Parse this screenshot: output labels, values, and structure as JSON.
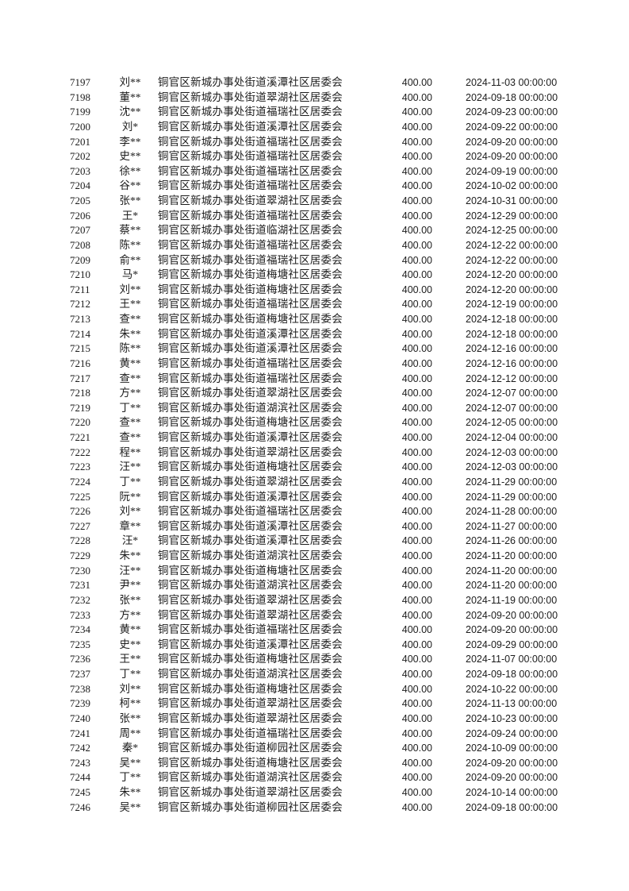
{
  "page": {
    "background_color": "#ffffff",
    "text_color": "#1c1c1c",
    "amount_uniform_value": "400.00"
  },
  "table": {
    "rows": [
      {
        "id": "7197",
        "name": "刘**",
        "org": "铜官区新城办事处街道溪潭社区居委会",
        "amount": "400.00",
        "datetime": "2024-11-03 00:00:00"
      },
      {
        "id": "7198",
        "name": "董**",
        "org": "铜官区新城办事处街道翠湖社区居委会",
        "amount": "400.00",
        "datetime": "2024-09-18 00:00:00"
      },
      {
        "id": "7199",
        "name": "沈**",
        "org": "铜官区新城办事处街道福瑞社区居委会",
        "amount": "400.00",
        "datetime": "2024-09-23 00:00:00"
      },
      {
        "id": "7200",
        "name": "刘*",
        "org": "铜官区新城办事处街道溪潭社区居委会",
        "amount": "400.00",
        "datetime": "2024-09-22 00:00:00"
      },
      {
        "id": "7201",
        "name": "李**",
        "org": "铜官区新城办事处街道福瑞社区居委会",
        "amount": "400.00",
        "datetime": "2024-09-20 00:00:00"
      },
      {
        "id": "7202",
        "name": "史**",
        "org": "铜官区新城办事处街道福瑞社区居委会",
        "amount": "400.00",
        "datetime": "2024-09-20 00:00:00"
      },
      {
        "id": "7203",
        "name": "徐**",
        "org": "铜官区新城办事处街道福瑞社区居委会",
        "amount": "400.00",
        "datetime": "2024-09-19 00:00:00"
      },
      {
        "id": "7204",
        "name": "谷**",
        "org": "铜官区新城办事处街道福瑞社区居委会",
        "amount": "400.00",
        "datetime": "2024-10-02 00:00:00"
      },
      {
        "id": "7205",
        "name": "张**",
        "org": "铜官区新城办事处街道翠湖社区居委会",
        "amount": "400.00",
        "datetime": "2024-10-31 00:00:00"
      },
      {
        "id": "7206",
        "name": "王*",
        "org": "铜官区新城办事处街道福瑞社区居委会",
        "amount": "400.00",
        "datetime": "2024-12-29 00:00:00"
      },
      {
        "id": "7207",
        "name": "蔡**",
        "org": "铜官区新城办事处街道临湖社区居委会",
        "amount": "400.00",
        "datetime": "2024-12-25 00:00:00"
      },
      {
        "id": "7208",
        "name": "陈**",
        "org": "铜官区新城办事处街道福瑞社区居委会",
        "amount": "400.00",
        "datetime": "2024-12-22 00:00:00"
      },
      {
        "id": "7209",
        "name": "俞**",
        "org": "铜官区新城办事处街道福瑞社区居委会",
        "amount": "400.00",
        "datetime": "2024-12-22 00:00:00"
      },
      {
        "id": "7210",
        "name": "马*",
        "org": "铜官区新城办事处街道梅塘社区居委会",
        "amount": "400.00",
        "datetime": "2024-12-20 00:00:00"
      },
      {
        "id": "7211",
        "name": "刘**",
        "org": "铜官区新城办事处街道梅塘社区居委会",
        "amount": "400.00",
        "datetime": "2024-12-20 00:00:00"
      },
      {
        "id": "7212",
        "name": "王**",
        "org": "铜官区新城办事处街道福瑞社区居委会",
        "amount": "400.00",
        "datetime": "2024-12-19 00:00:00"
      },
      {
        "id": "7213",
        "name": "查**",
        "org": "铜官区新城办事处街道梅塘社区居委会",
        "amount": "400.00",
        "datetime": "2024-12-18 00:00:00"
      },
      {
        "id": "7214",
        "name": "朱**",
        "org": "铜官区新城办事处街道溪潭社区居委会",
        "amount": "400.00",
        "datetime": "2024-12-18 00:00:00"
      },
      {
        "id": "7215",
        "name": "陈**",
        "org": "铜官区新城办事处街道溪潭社区居委会",
        "amount": "400.00",
        "datetime": "2024-12-16 00:00:00"
      },
      {
        "id": "7216",
        "name": "黄**",
        "org": "铜官区新城办事处街道福瑞社区居委会",
        "amount": "400.00",
        "datetime": "2024-12-16 00:00:00"
      },
      {
        "id": "7217",
        "name": "查**",
        "org": "铜官区新城办事处街道福瑞社区居委会",
        "amount": "400.00",
        "datetime": "2024-12-12 00:00:00"
      },
      {
        "id": "7218",
        "name": "方**",
        "org": "铜官区新城办事处街道翠湖社区居委会",
        "amount": "400.00",
        "datetime": "2024-12-07 00:00:00"
      },
      {
        "id": "7219",
        "name": "丁**",
        "org": "铜官区新城办事处街道湖滨社区居委会",
        "amount": "400.00",
        "datetime": "2024-12-07 00:00:00"
      },
      {
        "id": "7220",
        "name": "查**",
        "org": "铜官区新城办事处街道梅塘社区居委会",
        "amount": "400.00",
        "datetime": "2024-12-05 00:00:00"
      },
      {
        "id": "7221",
        "name": "查**",
        "org": "铜官区新城办事处街道溪潭社区居委会",
        "amount": "400.00",
        "datetime": "2024-12-04 00:00:00"
      },
      {
        "id": "7222",
        "name": "程**",
        "org": "铜官区新城办事处街道翠湖社区居委会",
        "amount": "400.00",
        "datetime": "2024-12-03 00:00:00"
      },
      {
        "id": "7223",
        "name": "汪**",
        "org": "铜官区新城办事处街道梅塘社区居委会",
        "amount": "400.00",
        "datetime": "2024-12-03 00:00:00"
      },
      {
        "id": "7224",
        "name": "丁**",
        "org": "铜官区新城办事处街道翠湖社区居委会",
        "amount": "400.00",
        "datetime": "2024-11-29 00:00:00"
      },
      {
        "id": "7225",
        "name": "阮**",
        "org": "铜官区新城办事处街道溪潭社区居委会",
        "amount": "400.00",
        "datetime": "2024-11-29 00:00:00"
      },
      {
        "id": "7226",
        "name": "刘**",
        "org": "铜官区新城办事处街道福瑞社区居委会",
        "amount": "400.00",
        "datetime": "2024-11-28 00:00:00"
      },
      {
        "id": "7227",
        "name": "章**",
        "org": "铜官区新城办事处街道溪潭社区居委会",
        "amount": "400.00",
        "datetime": "2024-11-27 00:00:00"
      },
      {
        "id": "7228",
        "name": "汪*",
        "org": "铜官区新城办事处街道溪潭社区居委会",
        "amount": "400.00",
        "datetime": "2024-11-26 00:00:00"
      },
      {
        "id": "7229",
        "name": "朱**",
        "org": "铜官区新城办事处街道湖滨社区居委会",
        "amount": "400.00",
        "datetime": "2024-11-20 00:00:00"
      },
      {
        "id": "7230",
        "name": "汪**",
        "org": "铜官区新城办事处街道梅塘社区居委会",
        "amount": "400.00",
        "datetime": "2024-11-20 00:00:00"
      },
      {
        "id": "7231",
        "name": "尹**",
        "org": "铜官区新城办事处街道湖滨社区居委会",
        "amount": "400.00",
        "datetime": "2024-11-20 00:00:00"
      },
      {
        "id": "7232",
        "name": "张**",
        "org": "铜官区新城办事处街道翠湖社区居委会",
        "amount": "400.00",
        "datetime": "2024-11-19 00:00:00"
      },
      {
        "id": "7233",
        "name": "方**",
        "org": "铜官区新城办事处街道翠湖社区居委会",
        "amount": "400.00",
        "datetime": "2024-09-20 00:00:00"
      },
      {
        "id": "7234",
        "name": "黄**",
        "org": "铜官区新城办事处街道福瑞社区居委会",
        "amount": "400.00",
        "datetime": "2024-09-20 00:00:00"
      },
      {
        "id": "7235",
        "name": "史**",
        "org": "铜官区新城办事处街道溪潭社区居委会",
        "amount": "400.00",
        "datetime": "2024-09-29 00:00:00"
      },
      {
        "id": "7236",
        "name": "王**",
        "org": "铜官区新城办事处街道梅塘社区居委会",
        "amount": "400.00",
        "datetime": "2024-11-07 00:00:00"
      },
      {
        "id": "7237",
        "name": "丁**",
        "org": "铜官区新城办事处街道湖滨社区居委会",
        "amount": "400.00",
        "datetime": "2024-09-18 00:00:00"
      },
      {
        "id": "7238",
        "name": "刘**",
        "org": "铜官区新城办事处街道梅塘社区居委会",
        "amount": "400.00",
        "datetime": "2024-10-22 00:00:00"
      },
      {
        "id": "7239",
        "name": "柯**",
        "org": "铜官区新城办事处街道翠湖社区居委会",
        "amount": "400.00",
        "datetime": "2024-11-13 00:00:00"
      },
      {
        "id": "7240",
        "name": "张**",
        "org": "铜官区新城办事处街道翠湖社区居委会",
        "amount": "400.00",
        "datetime": "2024-10-23 00:00:00"
      },
      {
        "id": "7241",
        "name": "周**",
        "org": "铜官区新城办事处街道福瑞社区居委会",
        "amount": "400.00",
        "datetime": "2024-09-24 00:00:00"
      },
      {
        "id": "7242",
        "name": "秦*",
        "org": "铜官区新城办事处街道柳园社区居委会",
        "amount": "400.00",
        "datetime": "2024-10-09 00:00:00"
      },
      {
        "id": "7243",
        "name": "吴**",
        "org": "铜官区新城办事处街道梅塘社区居委会",
        "amount": "400.00",
        "datetime": "2024-09-20 00:00:00"
      },
      {
        "id": "7244",
        "name": "丁**",
        "org": "铜官区新城办事处街道湖滨社区居委会",
        "amount": "400.00",
        "datetime": "2024-09-20 00:00:00"
      },
      {
        "id": "7245",
        "name": "朱**",
        "org": "铜官区新城办事处街道翠湖社区居委会",
        "amount": "400.00",
        "datetime": "2024-10-14 00:00:00"
      },
      {
        "id": "7246",
        "name": "吴**",
        "org": "铜官区新城办事处街道柳园社区居委会",
        "amount": "400.00",
        "datetime": "2024-09-18 00:00:00"
      }
    ]
  }
}
